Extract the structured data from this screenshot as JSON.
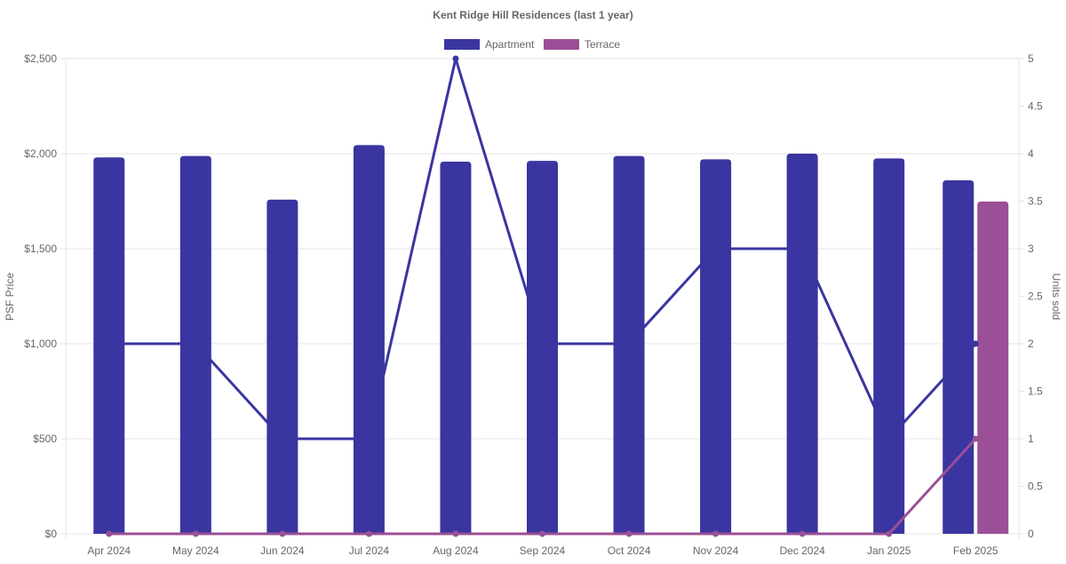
{
  "chart_data": {
    "type": "bar",
    "title": "Kent Ridge Hill Residences (last 1 year)",
    "categories": [
      "Apr 2024",
      "May 2024",
      "Jun 2024",
      "Jul 2024",
      "Aug 2024",
      "Sep 2024",
      "Oct 2024",
      "Nov 2024",
      "Dec 2024",
      "Jan 2025",
      "Feb 2025"
    ],
    "ylabel": "PSF Price",
    "y2label": "Units sold",
    "ylim": [
      0,
      2500
    ],
    "y2lim": [
      0,
      5
    ],
    "yticks": [
      "$0",
      "$500",
      "$1,000",
      "$1,500",
      "$2,000",
      "$2,500"
    ],
    "y2ticks": [
      "0",
      "0.5",
      "1",
      "1.5",
      "2",
      "2.5",
      "3",
      "3.5",
      "4",
      "4.5",
      "5"
    ],
    "grid": true,
    "legend_position": "top-center",
    "series": [
      {
        "name": "Apartment",
        "type": "bar",
        "axis": "left",
        "color": "#3a35a0",
        "values": [
          1980,
          1988,
          1758,
          2045,
          1958,
          1962,
          1988,
          1970,
          2000,
          1975,
          1860
        ]
      },
      {
        "name": "Terrace",
        "type": "bar",
        "axis": "left",
        "color": "#9b4f96",
        "values": [
          null,
          null,
          null,
          null,
          null,
          null,
          null,
          null,
          null,
          null,
          1748
        ]
      },
      {
        "name": "Apartment",
        "type": "line",
        "axis": "right",
        "color": "#3a35a0",
        "values": [
          2,
          2,
          1,
          1,
          5,
          2,
          2,
          3,
          3,
          1,
          2
        ]
      },
      {
        "name": "Terrace",
        "type": "line",
        "axis": "right",
        "color": "#9b4f96",
        "values": [
          0,
          0,
          0,
          0,
          0,
          0,
          0,
          0,
          0,
          0,
          1
        ]
      }
    ]
  }
}
